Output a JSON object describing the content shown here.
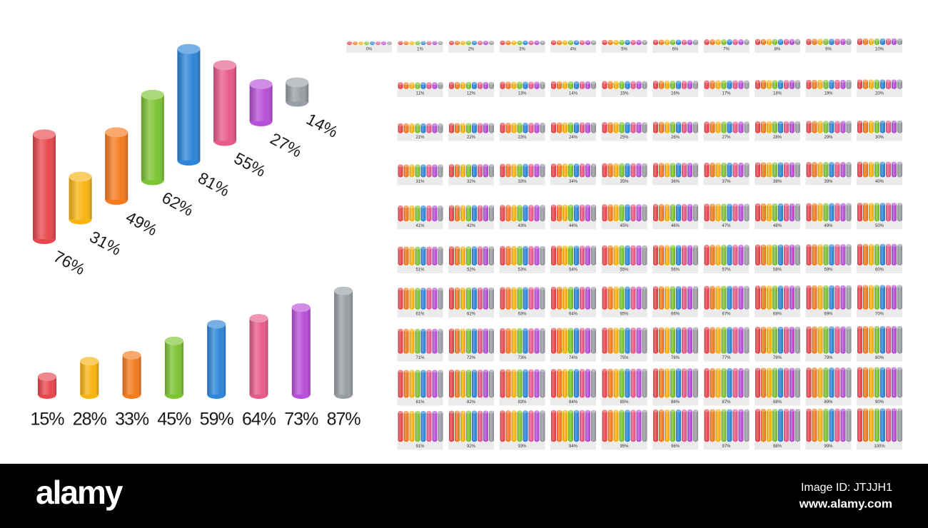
{
  "chart_data": [
    {
      "type": "isometric",
      "values": [
        76,
        31,
        49,
        62,
        81,
        55,
        27,
        14
      ],
      "value_labels": [
        "76%",
        "31%",
        "49%",
        "62%",
        "81%",
        "55%",
        "27%",
        "14%"
      ],
      "colors": [
        "#e8474e",
        "#f9b412",
        "#f47b20",
        "#7dc433",
        "#2d86d9",
        "#e85a8a",
        "#b84fd8",
        "#9a9ea4"
      ]
    },
    {
      "type": "cylinder",
      "values": [
        15,
        28,
        33,
        45,
        59,
        64,
        73,
        87
      ],
      "value_labels": [
        "15%",
        "28%",
        "33%",
        "45%",
        "59%",
        "64%",
        "73%",
        "87%"
      ],
      "colors": [
        "#e8474e",
        "#f9b412",
        "#f47b20",
        "#7dc433",
        "#2d86d9",
        "#e85a8a",
        "#b84fd8",
        "#9a9ea4"
      ]
    },
    {
      "type": "tiles",
      "values": [
        0,
        1,
        2,
        3,
        4,
        5,
        6,
        7,
        8,
        9,
        10,
        11,
        12,
        13,
        14,
        15,
        16,
        17,
        18,
        19,
        20,
        21,
        22,
        23,
        24,
        25,
        26,
        27,
        28,
        29,
        30,
        31,
        32,
        33,
        34,
        35,
        36,
        37,
        38,
        39,
        40,
        41,
        42,
        43,
        44,
        45,
        46,
        47,
        48,
        49,
        50,
        51,
        52,
        53,
        54,
        55,
        56,
        57,
        58,
        59,
        60,
        61,
        62,
        63,
        64,
        65,
        66,
        67,
        68,
        69,
        70,
        71,
        72,
        73,
        74,
        75,
        76,
        77,
        78,
        79,
        80,
        81,
        82,
        83,
        84,
        85,
        86,
        87,
        88,
        89,
        90,
        91,
        92,
        93,
        94,
        95,
        96,
        97,
        98,
        99,
        100
      ],
      "value_labels": [
        "0%",
        "1%",
        "2%",
        "3%",
        "4%",
        "5%",
        "6%",
        "7%",
        "8%",
        "9%",
        "10%",
        "11%",
        "12%",
        "13%",
        "14%",
        "15%",
        "16%",
        "17%",
        "18%",
        "19%",
        "20%",
        "21%",
        "22%",
        "23%",
        "24%",
        "25%",
        "26%",
        "27%",
        "28%",
        "29%",
        "30%",
        "31%",
        "32%",
        "33%",
        "34%",
        "35%",
        "36%",
        "37%",
        "38%",
        "39%",
        "40%",
        "41%",
        "42%",
        "43%",
        "44%",
        "45%",
        "46%",
        "47%",
        "48%",
        "49%",
        "50%",
        "51%",
        "52%",
        "53%",
        "54%",
        "55%",
        "56%",
        "57%",
        "58%",
        "59%",
        "60%",
        "61%",
        "62%",
        "63%",
        "64%",
        "65%",
        "66%",
        "67%",
        "68%",
        "69%",
        "70%",
        "71%",
        "72%",
        "73%",
        "74%",
        "75%",
        "76%",
        "77%",
        "78%",
        "79%",
        "80%",
        "81%",
        "82%",
        "83%",
        "84%",
        "85%",
        "86%",
        "87%",
        "88%",
        "89%",
        "90%",
        "91%",
        "92%",
        "93%",
        "94%",
        "95%",
        "96%",
        "97%",
        "98%",
        "99%",
        "100%"
      ],
      "colors": [
        "#e8474e",
        "#f47b20",
        "#f9b412",
        "#7dc433",
        "#2d86d9",
        "#e85a8a",
        "#b84fd8",
        "#9a9ea4"
      ]
    }
  ],
  "footer": {
    "logo": "alamy",
    "image_id": "Image ID: JTJJH1",
    "url": "www.alamy.com"
  }
}
